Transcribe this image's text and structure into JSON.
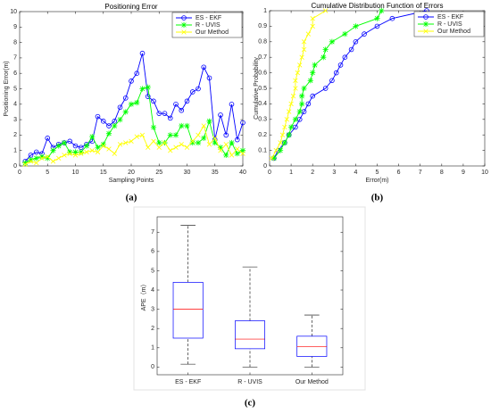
{
  "chart_data": [
    {
      "type": "line",
      "title": "Positioning Error",
      "xlabel": "Sampling Points",
      "ylabel": "Positioning Error(m)",
      "caption": "(a)",
      "x": [
        1,
        2,
        3,
        4,
        5,
        6,
        7,
        8,
        9,
        10,
        11,
        12,
        13,
        14,
        15,
        16,
        17,
        18,
        19,
        20,
        21,
        22,
        23,
        24,
        25,
        26,
        27,
        28,
        29,
        30,
        31,
        32,
        33,
        34,
        35,
        36,
        37,
        38,
        39,
        40
      ],
      "xlim": [
        0,
        40
      ],
      "xticks": [
        0,
        5,
        10,
        15,
        20,
        25,
        30,
        35,
        40
      ],
      "ylim": [
        0,
        10
      ],
      "yticks": [
        0,
        1,
        2,
        3,
        4,
        5,
        6,
        7,
        8,
        9,
        10
      ],
      "legend": "upper right",
      "series": [
        {
          "name": "ES - EKF",
          "color": "#0000ff",
          "marker": "o",
          "values": [
            0.3,
            0.7,
            0.9,
            0.8,
            1.8,
            1.2,
            1.4,
            1.5,
            1.6,
            1.3,
            1.2,
            1.4,
            1.6,
            3.2,
            2.9,
            2.6,
            2.9,
            3.8,
            4.4,
            5.5,
            6.0,
            7.3,
            4.5,
            4.2,
            3.4,
            3.4,
            3.1,
            4.0,
            3.6,
            4.2,
            4.8,
            5.0,
            6.4,
            5.7,
            1.7,
            3.3,
            2.0,
            4.0,
            1.7,
            2.8
          ]
        },
        {
          "name": "R - UVIS",
          "color": "#00ff00",
          "marker": "*",
          "values": [
            0.2,
            0.4,
            0.5,
            0.6,
            0.5,
            1.0,
            1.3,
            1.5,
            0.9,
            0.9,
            0.9,
            1.3,
            1.9,
            1.2,
            1.4,
            2.1,
            2.6,
            3.0,
            3.5,
            4.0,
            4.1,
            5.0,
            5.1,
            2.5,
            1.5,
            1.5,
            2.0,
            2.0,
            2.6,
            2.6,
            1.5,
            1.5,
            1.8,
            2.9,
            1.5,
            1.2,
            0.7,
            1.5,
            0.8,
            1.0
          ]
        },
        {
          "name": "Our Method",
          "color": "#ffff00",
          "marker": "x",
          "values": [
            0.1,
            0.3,
            0.2,
            0.5,
            0.6,
            0.3,
            0.5,
            0.7,
            0.8,
            0.7,
            0.8,
            0.9,
            1.0,
            0.9,
            1.3,
            1.1,
            0.8,
            1.4,
            1.5,
            1.6,
            1.9,
            2.0,
            1.2,
            1.6,
            1.2,
            1.5,
            1.0,
            1.2,
            1.4,
            1.2,
            1.6,
            2.0,
            2.6,
            1.4,
            1.8,
            1.0,
            1.4,
            0.7,
            1.1,
            0.8
          ]
        }
      ]
    },
    {
      "type": "line",
      "title": "Cumulative Distribution Function of Errors",
      "xlabel": "Error(m)",
      "ylabel": "Cumulative Probability",
      "caption": "(b)",
      "xlim": [
        0,
        10
      ],
      "xticks": [
        0,
        1,
        2,
        3,
        4,
        5,
        6,
        7,
        8,
        9,
        10
      ],
      "ylim": [
        0,
        1
      ],
      "yticks": [
        0,
        0.1,
        0.2,
        0.3,
        0.4,
        0.5,
        0.6,
        0.7,
        0.8,
        0.9,
        1
      ],
      "legend": "upper right",
      "series": [
        {
          "name": "ES - EKF",
          "color": "#0000ff",
          "marker": "o",
          "x": [
            0.2,
            0.4,
            0.7,
            0.9,
            1.2,
            1.4,
            1.6,
            1.8,
            2.0,
            2.6,
            2.9,
            3.1,
            3.3,
            3.5,
            3.8,
            4.0,
            4.4,
            5.0,
            5.7,
            7.3
          ],
          "values": [
            0.05,
            0.1,
            0.15,
            0.2,
            0.25,
            0.3,
            0.35,
            0.4,
            0.45,
            0.5,
            0.55,
            0.6,
            0.65,
            0.7,
            0.75,
            0.8,
            0.85,
            0.9,
            0.95,
            1
          ]
        },
        {
          "name": "R - UVIS",
          "color": "#00ff00",
          "marker": "*",
          "x": [
            0.2,
            0.5,
            0.7,
            0.9,
            1.0,
            1.2,
            1.4,
            1.5,
            1.5,
            1.6,
            1.9,
            2.0,
            2.1,
            2.5,
            2.6,
            2.9,
            3.5,
            4.0,
            5.0,
            5.2
          ],
          "values": [
            0.05,
            0.1,
            0.15,
            0.2,
            0.25,
            0.3,
            0.35,
            0.4,
            0.45,
            0.5,
            0.55,
            0.6,
            0.65,
            0.7,
            0.75,
            0.8,
            0.85,
            0.9,
            0.95,
            1
          ]
        },
        {
          "name": "Our Method",
          "color": "#ffff00",
          "marker": "x",
          "x": [
            0.1,
            0.3,
            0.5,
            0.6,
            0.7,
            0.8,
            0.9,
            1.0,
            1.1,
            1.2,
            1.2,
            1.3,
            1.4,
            1.5,
            1.6,
            1.6,
            1.8,
            2.0,
            2.0,
            2.6
          ],
          "values": [
            0.05,
            0.1,
            0.15,
            0.2,
            0.25,
            0.3,
            0.35,
            0.4,
            0.45,
            0.5,
            0.55,
            0.6,
            0.65,
            0.7,
            0.75,
            0.8,
            0.85,
            0.9,
            0.95,
            1
          ]
        }
      ]
    },
    {
      "type": "box",
      "ylabel": "APE（m）",
      "caption": "(c)",
      "categories": [
        "ES - EKF",
        "R - UVIS",
        "Our Method"
      ],
      "ylim": [
        -0.4,
        7.8
      ],
      "yticks": [
        0,
        1,
        2,
        3,
        4,
        5,
        6,
        7
      ],
      "box_color": "#0000ff",
      "median_color": "#ff0000",
      "boxes": [
        {
          "min": 0.15,
          "q1": 1.5,
          "median": 3.0,
          "q3": 4.4,
          "max": 7.35
        },
        {
          "min": 0,
          "q1": 0.95,
          "median": 1.45,
          "q3": 2.4,
          "max": 5.2
        },
        {
          "min": 0,
          "q1": 0.55,
          "median": 1.05,
          "q3": 1.6,
          "max": 2.7
        }
      ]
    }
  ]
}
